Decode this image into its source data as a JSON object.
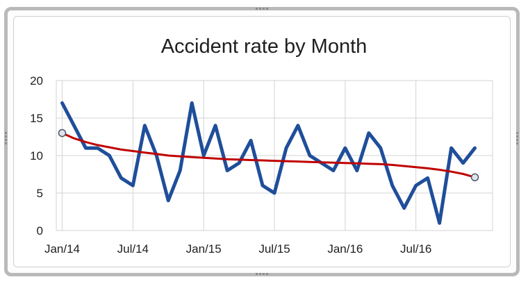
{
  "chart_data": {
    "type": "line",
    "title": "Accident rate by Month",
    "xlabel": "",
    "ylabel": "",
    "ylim": [
      0,
      20
    ],
    "yticks": [
      0,
      5,
      10,
      15,
      20
    ],
    "x_tick_labels": [
      "Jan/14",
      "Jul/14",
      "Jan/15",
      "Jul/15",
      "Jan/16",
      "Jul/16"
    ],
    "grid": true,
    "legend": "none",
    "x": [
      "Jan/14",
      "Feb/14",
      "Mar/14",
      "Apr/14",
      "May/14",
      "Jun/14",
      "Jul/14",
      "Aug/14",
      "Sep/14",
      "Oct/14",
      "Nov/14",
      "Dec/14",
      "Jan/15",
      "Feb/15",
      "Mar/15",
      "Apr/15",
      "May/15",
      "Jun/15",
      "Jul/15",
      "Aug/15",
      "Sep/15",
      "Oct/15",
      "Nov/15",
      "Dec/15",
      "Jan/16",
      "Feb/16",
      "Mar/16",
      "Apr/16",
      "May/16",
      "Jun/16",
      "Jul/16",
      "Aug/16",
      "Sep/16",
      "Oct/16",
      "Nov/16",
      "Dec/16"
    ],
    "series": [
      {
        "color": "#1f4e9a",
        "values": [
          17,
          14,
          11,
          11,
          10,
          7,
          6,
          14,
          10,
          4,
          8,
          17,
          10,
          14,
          8,
          9,
          12,
          6,
          5,
          11,
          14,
          10,
          9,
          8,
          11,
          8,
          13,
          11,
          6,
          3,
          6,
          7,
          1,
          11,
          9,
          11
        ]
      },
      {
        "type": "trendline",
        "color": "#c00000",
        "values": [
          13,
          12.3,
          11.8,
          11.4,
          11.1,
          10.8,
          10.6,
          10.4,
          10.2,
          10.0,
          9.9,
          9.8,
          9.7,
          9.6,
          9.5,
          9.45,
          9.4,
          9.35,
          9.3,
          9.25,
          9.2,
          9.15,
          9.1,
          9.05,
          9.0,
          8.95,
          8.9,
          8.85,
          8.75,
          8.6,
          8.45,
          8.3,
          8.1,
          7.85,
          7.55,
          7.1
        ]
      }
    ]
  }
}
